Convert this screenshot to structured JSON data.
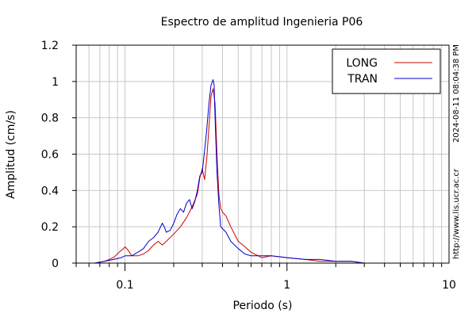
{
  "chart_data": {
    "type": "line",
    "title": "Espectro de amplitud Ingenieria P06",
    "xlabel": "Periodo (s)",
    "ylabel": "Amplitud (cm/s)",
    "x_scale": "log",
    "xlim": [
      0.05,
      10
    ],
    "ylim": [
      0,
      1.2
    ],
    "grid": true,
    "legend_position": "top-right",
    "x_ticks": [
      {
        "value": 0.1,
        "label": "0.1"
      },
      {
        "value": 1,
        "label": "1"
      },
      {
        "value": 10,
        "label": "10"
      }
    ],
    "y_ticks": [
      {
        "value": 0,
        "label": "0"
      },
      {
        "value": 0.2,
        "label": "0.2"
      },
      {
        "value": 0.4,
        "label": "0.4"
      },
      {
        "value": 0.6,
        "label": "0.6"
      },
      {
        "value": 0.8,
        "label": "0.8"
      },
      {
        "value": 1,
        "label": "1"
      },
      {
        "value": 1.2,
        "label": "1.2"
      }
    ],
    "series": [
      {
        "name": "LONG",
        "color": "#cc0000",
        "x": [
          0.065,
          0.075,
          0.085,
          0.092,
          0.098,
          0.1,
          0.105,
          0.11,
          0.12,
          0.13,
          0.14,
          0.15,
          0.16,
          0.17,
          0.18,
          0.2,
          0.22,
          0.24,
          0.26,
          0.28,
          0.29,
          0.3,
          0.31,
          0.32,
          0.33,
          0.34,
          0.35,
          0.36,
          0.37,
          0.38,
          0.39,
          0.4,
          0.42,
          0.45,
          0.5,
          0.55,
          0.6,
          0.7,
          0.8,
          1.0,
          1.3,
          1.6,
          2.0,
          2.5,
          3.0,
          4.0,
          6.0,
          10.0
        ],
        "y": [
          0.0,
          0.01,
          0.03,
          0.06,
          0.08,
          0.09,
          0.07,
          0.04,
          0.04,
          0.05,
          0.07,
          0.1,
          0.12,
          0.1,
          0.12,
          0.16,
          0.2,
          0.25,
          0.31,
          0.38,
          0.47,
          0.52,
          0.46,
          0.58,
          0.75,
          0.92,
          0.96,
          0.88,
          0.6,
          0.38,
          0.3,
          0.28,
          0.26,
          0.2,
          0.12,
          0.09,
          0.06,
          0.03,
          0.04,
          0.03,
          0.02,
          0.01,
          0.01,
          0.01,
          0.0,
          0.0,
          0.0,
          0.0
        ]
      },
      {
        "name": "TRAN",
        "color": "#0000cc",
        "x": [
          0.065,
          0.075,
          0.085,
          0.095,
          0.1,
          0.11,
          0.12,
          0.13,
          0.14,
          0.15,
          0.16,
          0.17,
          0.175,
          0.18,
          0.19,
          0.2,
          0.21,
          0.22,
          0.23,
          0.24,
          0.25,
          0.26,
          0.27,
          0.28,
          0.29,
          0.3,
          0.31,
          0.32,
          0.33,
          0.34,
          0.35,
          0.355,
          0.36,
          0.37,
          0.38,
          0.39,
          0.4,
          0.42,
          0.45,
          0.5,
          0.55,
          0.6,
          0.7,
          0.8,
          1.0,
          1.3,
          1.6,
          2.0,
          2.5,
          3.0,
          4.0,
          6.0,
          10.0
        ],
        "y": [
          0.0,
          0.01,
          0.02,
          0.03,
          0.04,
          0.04,
          0.06,
          0.08,
          0.12,
          0.14,
          0.17,
          0.22,
          0.2,
          0.17,
          0.18,
          0.22,
          0.27,
          0.3,
          0.28,
          0.33,
          0.35,
          0.3,
          0.34,
          0.4,
          0.48,
          0.5,
          0.62,
          0.74,
          0.88,
          0.98,
          1.01,
          0.98,
          0.8,
          0.5,
          0.32,
          0.2,
          0.19,
          0.17,
          0.12,
          0.08,
          0.05,
          0.04,
          0.04,
          0.04,
          0.03,
          0.02,
          0.02,
          0.01,
          0.01,
          0.0,
          0.0,
          0.0,
          0.0
        ]
      }
    ]
  },
  "side_labels": {
    "timestamp": "2024-08-11 08:04:38 PM",
    "url": "http://www.lis.ucr.ac.cr"
  }
}
